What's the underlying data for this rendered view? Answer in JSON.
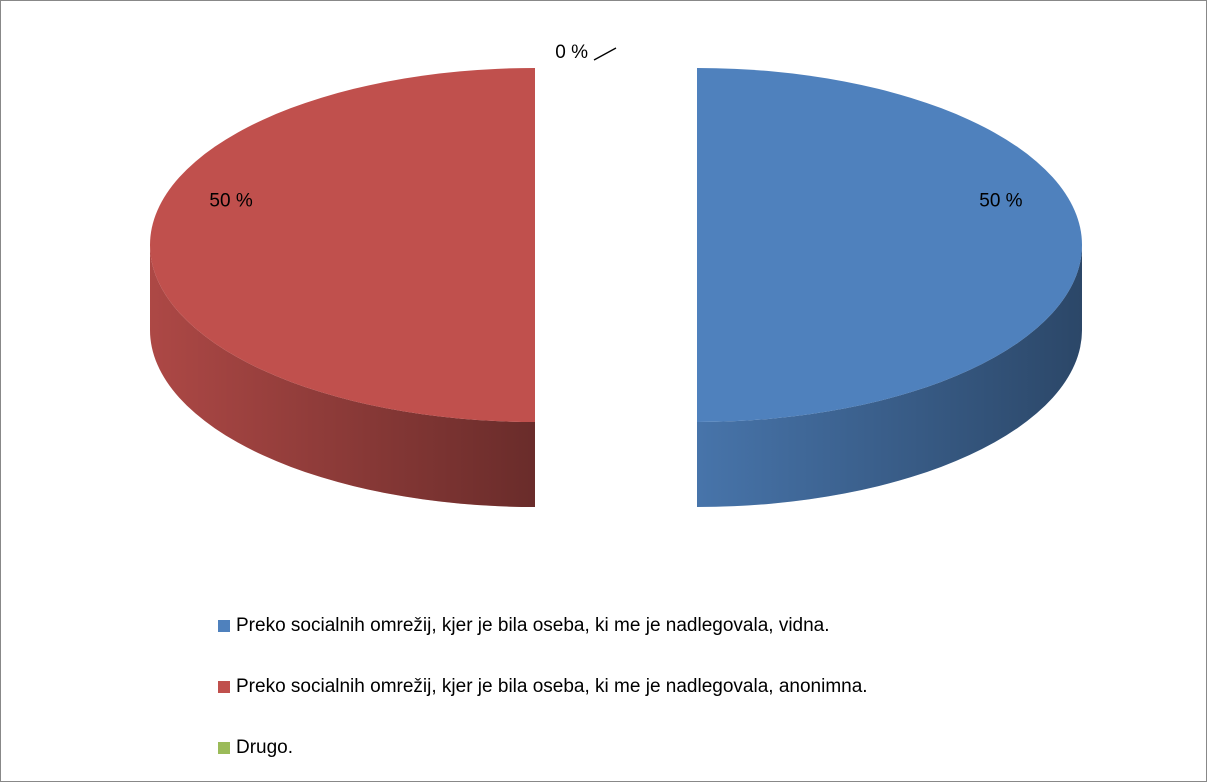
{
  "chart_data": {
    "type": "pie",
    "categories": [
      "Preko socialnih omrežij, kjer je bila oseba, ki me je nadlegovala, vidna.",
      "Preko socialnih omrežij, kjer je bila oseba, ki me je nadlegovala, anonimna.",
      "Drugo."
    ],
    "values": [
      50,
      50,
      0
    ],
    "value_labels": [
      "50 %",
      "50 %",
      "0 %"
    ],
    "colors": [
      "#4f81bd",
      "#c0504d",
      "#9bbb59"
    ],
    "legend": "bottom"
  }
}
